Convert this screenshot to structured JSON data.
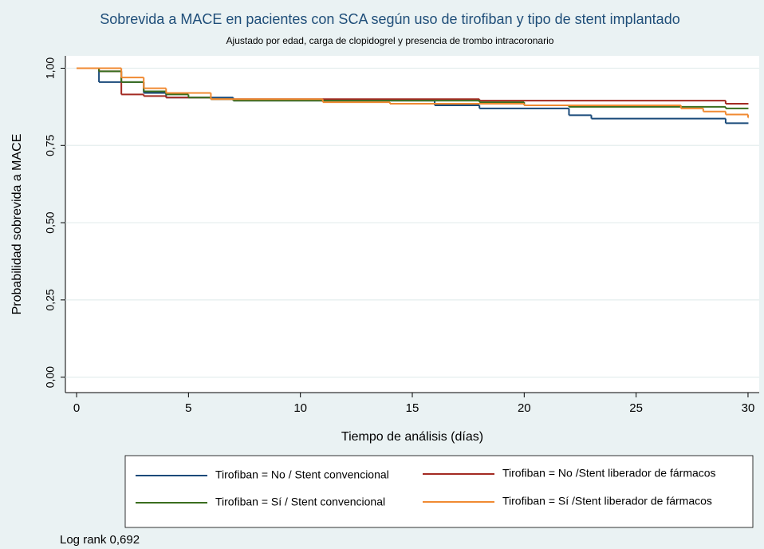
{
  "chart_data": {
    "type": "step",
    "title": "Sobrevida a MACE en pacientes con SCA según uso de tirofiban y tipo de stent implantado",
    "subtitle": "Ajustado por edad, carga de clopidogrel y presencia de trombo intracoronario",
    "x_label": "Tiempo de análisis (días)",
    "y_label": "Probabilidad sobrevida a MACE",
    "annotation": "Log rank 0,692",
    "xlim": [
      -0.5,
      30.5
    ],
    "ylim": [
      -0.05,
      1.04
    ],
    "xticks": [
      0,
      5,
      10,
      15,
      20,
      25,
      30
    ],
    "yticks": [
      {
        "value": 0,
        "label": "0,00"
      },
      {
        "value": 0.25,
        "label": "0,25"
      },
      {
        "value": 0.5,
        "label": "0,50"
      },
      {
        "value": 0.75,
        "label": "0,75"
      },
      {
        "value": 1,
        "label": "1,00"
      }
    ],
    "grid": true,
    "series": [
      {
        "name": "Tirofiban = No / Stent convencional",
        "color": "#1a4a7a",
        "x": [
          0,
          1,
          3,
          4,
          7,
          16,
          18,
          22,
          23,
          29,
          30
        ],
        "values": [
          1,
          0.955,
          0.92,
          0.905,
          0.895,
          0.88,
          0.87,
          0.848,
          0.837,
          0.822,
          0.822
        ]
      },
      {
        "name": "Tirofiban = No /Stent liberador de fármacos",
        "color": "#a32a22",
        "x": [
          0,
          1,
          2,
          3,
          4,
          6,
          18,
          29,
          30
        ],
        "values": [
          1,
          0.99,
          0.915,
          0.91,
          0.905,
          0.9,
          0.895,
          0.885,
          0.885
        ]
      },
      {
        "name": "Tirofiban = Sí / Stent convencional",
        "color": "#3a6e1f",
        "x": [
          0,
          1,
          2,
          3,
          4,
          5,
          6,
          7,
          18,
          20,
          22,
          29,
          30
        ],
        "values": [
          1,
          0.99,
          0.955,
          0.925,
          0.915,
          0.905,
          0.9,
          0.895,
          0.89,
          0.88,
          0.875,
          0.87,
          0.87
        ]
      },
      {
        "name": "Tirofiban = Sí /Stent liberador de fármacos",
        "color": "#f08a32",
        "x": [
          0,
          2,
          3,
          4,
          6,
          11,
          14,
          20,
          27,
          28,
          29,
          30
        ],
        "values": [
          1,
          0.97,
          0.935,
          0.92,
          0.9,
          0.89,
          0.885,
          0.88,
          0.87,
          0.86,
          0.85,
          0.84
        ]
      }
    ]
  }
}
